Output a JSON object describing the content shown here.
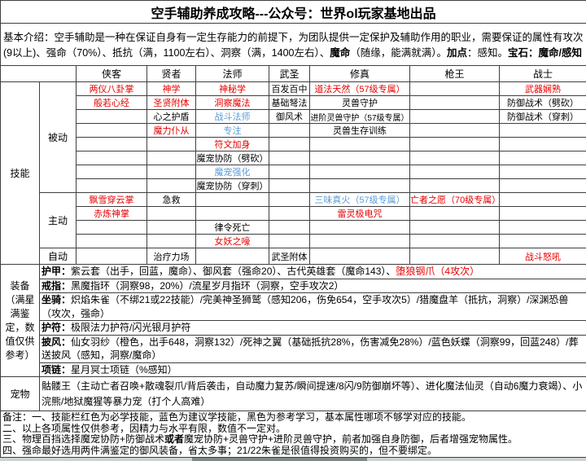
{
  "title": "空手辅助养成攻略---公众号：世界ol玩家基地出品",
  "colors": {
    "red": "#e80000",
    "blue": "#5b9bd5",
    "black": "#000000",
    "selection_green": "#3aa03a"
  },
  "intro": {
    "segments": [
      {
        "t": "基本介绍：空手辅助是一种在保证自身有一定生存能力的前提下，为团队提供一定保护及辅助作用的职业，需要保证的属性有攻次(9以上)、强命（70%）、抵抗（满，1100左右）、洞察（满，1400左右）、"
      },
      {
        "t": "魔命",
        "b": true
      },
      {
        "t": "（随缘，能满就满）。"
      },
      {
        "t": "加点",
        "b": true
      },
      {
        "t": "：感知。"
      },
      {
        "t": "宝石：魔命/感知",
        "b": true
      }
    ]
  },
  "skills": {
    "section_label": "技能",
    "class_headers": [
      "侠客",
      "贤者",
      "法师",
      "武圣",
      "修真",
      "枪王",
      "战士"
    ],
    "groups": [
      {
        "label": "被动",
        "rows": [
          [
            {
              "t": "两仪八卦掌",
              "c": "red"
            },
            {
              "t": "神学",
              "c": "red"
            },
            {
              "t": "神秘学",
              "c": "red"
            },
            {
              "t": "百发百中"
            },
            {
              "t": "道法天然（57级专属）",
              "c": "red"
            },
            null,
            {
              "t": "武器娴熟",
              "c": "red"
            }
          ],
          [
            {
              "t": "般若心经",
              "c": "red"
            },
            {
              "t": "圣贤附体",
              "c": "red"
            },
            {
              "t": "洞察魔法",
              "c": "red"
            },
            {
              "t": "基础弩法"
            },
            {
              "t": "灵兽守护"
            },
            null,
            {
              "t": "防御战术（劈砍）"
            }
          ],
          [
            null,
            {
              "t": "心之护盾"
            },
            {
              "t": "战斗法师",
              "c": "blue"
            },
            {
              "t": "御风术"
            },
            {
              "t": "进阶灵兽守护（57级专属）"
            },
            null,
            {
              "t": "防御战术（穿刺）"
            }
          ],
          [
            null,
            {
              "t": "魔力仆从",
              "c": "red"
            },
            {
              "t": "专注",
              "c": "blue"
            },
            null,
            {
              "t": "灵兽生存训练"
            },
            null,
            null
          ],
          [
            null,
            null,
            {
              "t": "符文加身",
              "c": "red"
            },
            null,
            null,
            null,
            null
          ],
          [
            null,
            null,
            {
              "t": "魔宠协防（劈砍）"
            },
            null,
            null,
            null,
            null
          ],
          [
            null,
            null,
            {
              "t": "魔宠强化",
              "c": "blue"
            },
            null,
            null,
            null,
            null
          ],
          [
            null,
            null,
            {
              "t": "魔宠协防（穿刺）"
            },
            null,
            null,
            null,
            null
          ]
        ]
      },
      {
        "label": "主动",
        "rows": [
          [
            {
              "t": "飘雪穿云掌",
              "c": "red"
            },
            {
              "t": "急救"
            },
            null,
            null,
            {
              "t": "三味真火（57级专属）",
              "c": "blue"
            },
            {
              "t": "亡者之愿（70级专属）",
              "c": "red"
            },
            null
          ],
          [
            {
              "t": "赤炼神掌",
              "c": "red"
            },
            null,
            null,
            null,
            {
              "t": "雷灵极电咒",
              "c": "red"
            },
            null,
            null
          ],
          [
            null,
            null,
            {
              "t": "律令死亡"
            },
            null,
            null,
            null,
            null
          ],
          [
            null,
            null,
            {
              "t": "女妖之嚎",
              "c": "red"
            },
            null,
            null,
            null,
            null
          ]
        ]
      },
      {
        "label": "自动",
        "rows": [
          [
            null,
            {
              "t": "治疗力场"
            },
            null,
            {
              "t": "武圣附体"
            },
            null,
            null,
            {
              "t": "战斗怒吼",
              "c": "red"
            }
          ]
        ]
      }
    ]
  },
  "equipment": {
    "section_label": "装备（满星满鉴定，数值仅供参考）",
    "rows": [
      {
        "label": "护甲：",
        "lines": 1,
        "segments": [
          {
            "t": "紫云套（出手，回蓝，魔命）、御风套（强命20）、古代英雄套（魔命143）、"
          },
          {
            "t": "堕狼钢爪（4攻次）",
            "c": "red"
          }
        ]
      },
      {
        "label": "戒指：",
        "lines": 1,
        "segments": [
          {
            "t": "黑魔指环（洞察98，20%）/流星岁月指环（洞察，空手攻次2）"
          }
        ]
      },
      {
        "label": "坐骑：",
        "lines": 2,
        "segments": [
          {
            "t": "炽焰朱雀（不绑21或22技能）/完美神圣狮鹫（感知206，伤免654，空手攻次5）/猎魔盘羊（抵抗，洞察）/深渊恐兽（攻次，强命）"
          }
        ]
      },
      {
        "label": "护符：",
        "lines": 1,
        "segments": [
          {
            "t": "极限法力护符/闪光银月护符"
          }
        ]
      },
      {
        "label": "披风：",
        "lines": 2,
        "segments": [
          {
            "t": "仙女羽纱（橙色，出手648，洞察132）/死神之翼（基础抵抗28%，伤害减免28%）/蓝色妖蝶（洞察99，回蓝248）/葬送披风（感知，洞察/魔命）"
          }
        ]
      },
      {
        "label": "项链：",
        "lines": 1,
        "segments": [
          {
            "t": "星月冥士项链（%感知）"
          }
        ]
      }
    ]
  },
  "pets": {
    "section_label": "宠物",
    "text": "骷髅王（主动亡者召唤+散魂裂爪/背后袭击，自动魔力复苏/瞬间提速/8闪/9防御崩坏等）、进化魔法仙灵（自动6魔力衰竭）、小浣熊/地狱魔猩等暴力宠（打个人高难）"
  },
  "notes": {
    "lines": [
      [
        {
          "t": "备注：一、技能栏红色为必学技能，蓝色为建议学技能，黑色为参考学习，基本属性哪项不够学对应的技能。"
        }
      ],
      [
        {
          "t": "二、以上各项属性仅供参考，因精力与水平有限，数值不一定对。"
        }
      ],
      [
        {
          "t": "三、物理百挡选择魔宠协防+防御战术"
        },
        {
          "t": "或者",
          "b": true
        },
        {
          "t": "魔宠协防+灵兽守护+进阶灵兽守护，前者加强自身防御，后者增强宠物属性。"
        }
      ],
      [
        {
          "t": "四、强命最好选用两件满鉴定的御风装备，省太多事；21/22朱雀是很值得投资购买的，但不要绑定。"
        }
      ]
    ]
  }
}
